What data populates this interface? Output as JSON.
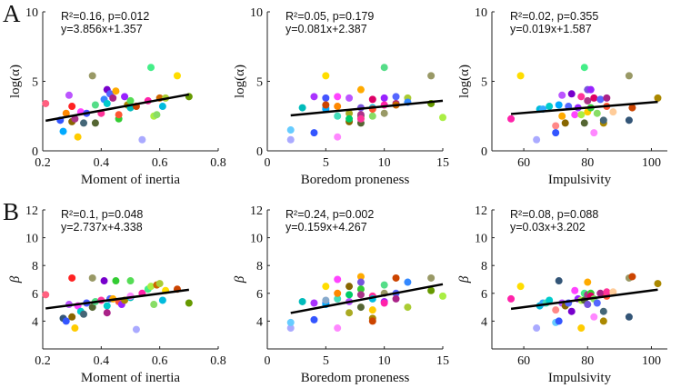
{
  "panel_labels": [
    "A",
    "B"
  ],
  "chart_data": [
    {
      "type": "scatter",
      "row": 0,
      "col": 0,
      "xlabel": "Moment of inertia",
      "ylabel": "log(α)",
      "xlim": [
        0.2,
        0.8
      ],
      "ylim": [
        0,
        10
      ],
      "xticks": [
        0.2,
        0.4,
        0.6,
        0.8
      ],
      "xtick_labels": [
        "0.2",
        "0.4",
        "0.6",
        "0.8"
      ],
      "yticks": [
        0,
        5,
        10
      ],
      "ytick_labels": [
        "0",
        "5",
        "10"
      ],
      "annotation_lines": [
        "R²=0.16, p=0.012",
        "y=3.856x+1.357"
      ],
      "fit": {
        "slope": 3.856,
        "intercept": 1.357
      },
      "x": [
        0.21,
        0.26,
        0.27,
        0.28,
        0.29,
        0.3,
        0.3,
        0.31,
        0.32,
        0.33,
        0.34,
        0.35,
        0.37,
        0.38,
        0.38,
        0.4,
        0.41,
        0.42,
        0.42,
        0.43,
        0.44,
        0.45,
        0.46,
        0.46,
        0.48,
        0.49,
        0.5,
        0.5,
        0.52,
        0.54,
        0.56,
        0.57,
        0.58,
        0.59,
        0.6,
        0.61,
        0.62,
        0.66,
        0.7
      ],
      "y": [
        3.4,
        2.2,
        1.4,
        2.7,
        4.0,
        2.1,
        3.2,
        2.3,
        1.0,
        2.8,
        2.0,
        2.7,
        5.4,
        2.0,
        3.3,
        2.7,
        3.7,
        4.4,
        3.4,
        4.1,
        3.8,
        4.3,
        2.3,
        2.6,
        3.9,
        3.3,
        3.6,
        3.1,
        3.2,
        0.8,
        3.6,
        6.0,
        2.5,
        2.6,
        3.8,
        3.2,
        3.8,
        5.4,
        3.9
      ],
      "colors": [
        "#ff6080",
        "#3355ff",
        "#00aaff",
        "#ff8800",
        "#bb55ff",
        "#886600",
        "#ff2222",
        "#aa3388",
        "#ffcc00",
        "#ff44ff",
        "#446677",
        "#4455ff",
        "#999966",
        "#556633",
        "#55dd88",
        "#ff3399",
        "#3388ff",
        "#7700cc",
        "#00cccc",
        "#5566ff",
        "#aa2288",
        "#ffaa00",
        "#33cc33",
        "#ff5533",
        "#9922ff",
        "#aa8800",
        "#55dd55",
        "#00bbbb",
        "#cc4400",
        "#aaaaff",
        "#ff22aa",
        "#44ee88",
        "#aaee44",
        "#88dd66",
        "#cc6600",
        "#00bbdd",
        "#aacc33",
        "#ffdd00",
        "#669900"
      ]
    },
    {
      "type": "scatter",
      "row": 0,
      "col": 1,
      "xlabel": "Boredom proneness",
      "ylabel": "log(α)",
      "xlim": [
        0,
        15
      ],
      "ylim": [
        0,
        10
      ],
      "xticks": [
        0,
        5,
        10,
        15
      ],
      "xtick_labels": [
        "0",
        "5",
        "10",
        "15"
      ],
      "yticks": [
        0,
        5,
        10
      ],
      "ytick_labels": [
        "0",
        "5",
        "10"
      ],
      "annotation_lines": [
        "R²=0.05, p=0.179",
        "y=0.081x+2.387"
      ],
      "fit": {
        "slope": 0.081,
        "intercept": 2.387
      },
      "x": [
        2,
        2,
        3,
        4,
        4,
        5,
        5,
        5,
        5,
        5,
        6,
        6,
        6,
        6,
        7,
        7,
        7,
        7,
        8,
        8,
        8,
        8,
        8,
        8,
        9,
        9,
        9,
        9,
        10,
        10,
        10,
        10,
        11,
        11,
        11,
        12,
        12,
        14,
        14,
        15
      ],
      "y": [
        0.8,
        1.5,
        3.1,
        1.3,
        3.9,
        5.4,
        3.8,
        3.1,
        3.0,
        3.3,
        1.0,
        2.5,
        3.9,
        3.2,
        3.8,
        2.7,
        2.1,
        2.3,
        4.4,
        3.1,
        2.5,
        2.0,
        2.6,
        2.3,
        3.7,
        3.1,
        2.5,
        3.0,
        6.0,
        3.8,
        2.7,
        3.3,
        3.9,
        3.4,
        3.3,
        3.8,
        3.5,
        5.4,
        3.4,
        2.4
      ],
      "colors": [
        "#aaaaff",
        "#66ccff",
        "#00bbbb",
        "#3355ff",
        "#aa33ff",
        "#ffdd00",
        "#4455ff",
        "#88aacc",
        "#00aaff",
        "#cc4400",
        "#ff88ff",
        "#44ddbb",
        "#ff44ff",
        "#ff8800",
        "#bb55ff",
        "#aaaa22",
        "#886600",
        "#00cc66",
        "#ffaa00",
        "#7755dd",
        "#33cc33",
        "#556633",
        "#aa3388",
        "#ff3399",
        "#dd0066",
        "#00bbdd",
        "#88dd66",
        "#ff5533",
        "#55dd88",
        "#9922ff",
        "#999966",
        "#ff22aa",
        "#5566ff",
        "#aa2288",
        "#cc6600",
        "#aacc33",
        "#3388ff",
        "#999966",
        "#669900",
        "#aaee44"
      ]
    },
    {
      "type": "scatter",
      "row": 0,
      "col": 2,
      "xlabel": "Impulsivity",
      "ylabel": "log(α)",
      "xlim": [
        50,
        105
      ],
      "ylim": [
        0,
        10
      ],
      "xticks": [
        60,
        80,
        100
      ],
      "xtick_labels": [
        "60",
        "80",
        "100"
      ],
      "yticks": [
        0,
        5,
        10
      ],
      "ytick_labels": [
        "0",
        "5",
        "10"
      ],
      "annotation_lines": [
        "R²=0.02, p=0.355",
        "y=0.019x+1.587"
      ],
      "fit": {
        "slope": 0.019,
        "intercept": 1.587
      },
      "x": [
        56,
        59,
        64,
        65,
        66,
        68,
        70,
        70,
        71,
        72,
        72,
        73,
        74,
        75,
        76,
        77,
        78,
        78,
        79,
        79,
        80,
        80,
        80,
        81,
        81,
        82,
        82,
        83,
        84,
        85,
        85,
        86,
        86,
        88,
        93,
        93,
        94,
        102
      ],
      "y": [
        2.3,
        5.4,
        0.8,
        3.0,
        3.0,
        3.2,
        1.8,
        1.3,
        3.3,
        4.0,
        2.5,
        2.0,
        3.2,
        4.1,
        2.6,
        3.1,
        2.6,
        3.9,
        6.0,
        2.0,
        4.4,
        3.6,
        2.8,
        3.1,
        4.4,
        1.3,
        3.8,
        2.7,
        3.7,
        2.0,
        2.2,
        3.8,
        3.2,
        2.8,
        5.4,
        2.2,
        3.1,
        3.8
      ],
      "colors": [
        "#ff22aa",
        "#ffdd00",
        "#aaaaff",
        "#00bbdd",
        "#33aaff",
        "#00cccc",
        "#ff8888",
        "#3355ff",
        "#00aaff",
        "#bb55ff",
        "#ffaa00",
        "#886600",
        "#5566ff",
        "#7700cc",
        "#ff44ff",
        "#9922ff",
        "#aaee44",
        "#ff3399",
        "#44ee88",
        "#556633",
        "#7755dd",
        "#aa3388",
        "#ffcc00",
        "#33cc33",
        "#9922ff",
        "#ff88ff",
        "#dd0066",
        "#88dd66",
        "#5566ff",
        "#aa8800",
        "#446677",
        "#aa2288",
        "#ff5533",
        "#ffcc99",
        "#999966",
        "#335577",
        "#cc4400",
        "#aa8800"
      ]
    },
    {
      "type": "scatter",
      "row": 1,
      "col": 0,
      "xlabel": "Moment of inertia",
      "ylabel": "β",
      "xlim": [
        0.2,
        0.8
      ],
      "ylim": [
        2,
        12
      ],
      "xticks": [
        0.2,
        0.4,
        0.6,
        0.8
      ],
      "xtick_labels": [
        "0.2",
        "0.4",
        "0.6",
        "0.8"
      ],
      "yticks": [
        4,
        6,
        8,
        10,
        12
      ],
      "ytick_labels": [
        "4",
        "6",
        "8",
        "10",
        "12"
      ],
      "annotation_lines": [
        "R²=0.1, p=0.048",
        "y=2.737x+4.338"
      ],
      "fit": {
        "slope": 2.737,
        "intercept": 4.338
      },
      "x": [
        0.21,
        0.27,
        0.28,
        0.29,
        0.3,
        0.3,
        0.31,
        0.32,
        0.33,
        0.34,
        0.35,
        0.37,
        0.37,
        0.38,
        0.4,
        0.41,
        0.42,
        0.42,
        0.43,
        0.44,
        0.45,
        0.46,
        0.47,
        0.48,
        0.5,
        0.5,
        0.5,
        0.52,
        0.54,
        0.56,
        0.57,
        0.58,
        0.59,
        0.6,
        0.61,
        0.62,
        0.66,
        0.7
      ],
      "y": [
        5.9,
        4.2,
        4.0,
        5.2,
        7.1,
        4.3,
        3.5,
        5.1,
        4.7,
        4.5,
        5.3,
        7.1,
        5.0,
        5.4,
        5.5,
        6.9,
        5.1,
        4.6,
        5.6,
        5.6,
        6.9,
        5.4,
        5.2,
        5.5,
        6.9,
        5.7,
        5.8,
        3.4,
        6.0,
        6.3,
        6.5,
        5.2,
        6.6,
        6.7,
        5.5,
        6.2,
        6.3,
        5.3
      ],
      "colors": [
        "#ff6080",
        "#335577",
        "#3355ff",
        "#bb55ff",
        "#ff2222",
        "#886600",
        "#ffcc00",
        "#ff44ff",
        "#00cccc",
        "#446677",
        "#4455ff",
        "#999966",
        "#556633",
        "#55dd88",
        "#ff3399",
        "#7700cc",
        "#00cccc",
        "#aa2288",
        "#5566ff",
        "#ffaa00",
        "#33cc33",
        "#ff5533",
        "#9922ff",
        "#aa8800",
        "#55dd55",
        "#00bbbb",
        "#ff88ff",
        "#aaaaff",
        "#ff22aa",
        "#44ee88",
        "#aaee44",
        "#88dd66",
        "#cc6600",
        "#aacc33",
        "#00bbdd",
        "#ffdd00",
        "#cc4400",
        "#669900"
      ]
    },
    {
      "type": "scatter",
      "row": 1,
      "col": 1,
      "xlabel": "Boredom proneness",
      "ylabel": "β",
      "xlim": [
        0,
        15
      ],
      "ylim": [
        2,
        12
      ],
      "xticks": [
        0,
        5,
        10,
        15
      ],
      "xtick_labels": [
        "0",
        "5",
        "10",
        "15"
      ],
      "yticks": [
        4,
        6,
        8,
        10,
        12
      ],
      "ytick_labels": [
        "4",
        "6",
        "8",
        "10",
        "12"
      ],
      "annotation_lines": [
        "R²=0.24, p=0.002",
        "y=0.159x+4.267"
      ],
      "fit": {
        "slope": 0.159,
        "intercept": 4.267
      },
      "x": [
        2,
        2,
        3,
        4,
        4,
        5,
        5,
        5,
        5,
        6,
        6,
        6,
        6,
        7,
        7,
        7,
        7,
        8,
        8,
        8,
        8,
        8,
        9,
        9,
        9,
        9,
        9,
        10,
        10,
        10,
        10,
        11,
        11,
        11,
        12,
        12,
        14,
        14,
        15
      ],
      "y": [
        3.5,
        3.9,
        5.4,
        4.1,
        5.3,
        6.5,
        5.3,
        5.2,
        5.5,
        3.5,
        5.6,
        7.0,
        6.0,
        5.4,
        4.6,
        6.5,
        5.9,
        7.2,
        6.8,
        6.3,
        5.9,
        5.0,
        4.8,
        4.2,
        4.0,
        5.8,
        5.6,
        6.6,
        5.4,
        6.0,
        5.3,
        7.1,
        6.0,
        5.6,
        5.0,
        6.8,
        7.1,
        6.2,
        5.8
      ],
      "colors": [
        "#aaaaff",
        "#66ccff",
        "#00bbbb",
        "#3355ff",
        "#aa33ff",
        "#ffdd00",
        "#4455ff",
        "#00aaff",
        "#88aacc",
        "#ff88ff",
        "#44ddbb",
        "#ff44ff",
        "#ff8800",
        "#bb55ff",
        "#aaaa22",
        "#886600",
        "#00cc66",
        "#ffaa00",
        "#7755dd",
        "#33cc33",
        "#aa3388",
        "#556633",
        "#ffcc00",
        "#aa8800",
        "#cc4400",
        "#ff3399",
        "#00bbdd",
        "#55dd88",
        "#9922ff",
        "#999966",
        "#ff22aa",
        "#cc4400",
        "#5566ff",
        "#aa2288",
        "#aacc33",
        "#3388ff",
        "#999966",
        "#669900",
        "#aaee44"
      ]
    },
    {
      "type": "scatter",
      "row": 1,
      "col": 2,
      "xlabel": "Impulsivity",
      "ylabel": "β",
      "xlim": [
        50,
        105
      ],
      "ylim": [
        2,
        12
      ],
      "xticks": [
        60,
        80,
        100
      ],
      "xtick_labels": [
        "60",
        "80",
        "100"
      ],
      "yticks": [
        4,
        6,
        8,
        10,
        12
      ],
      "ytick_labels": [
        "4",
        "6",
        "8",
        "10",
        "12"
      ],
      "annotation_lines": [
        "R²=0.08, p=0.088",
        "y=0.03x+3.202"
      ],
      "fit": {
        "slope": 0.03,
        "intercept": 3.202
      },
      "x": [
        56,
        59,
        64,
        65,
        66,
        67,
        68,
        70,
        70,
        71,
        71,
        72,
        73,
        74,
        75,
        76,
        77,
        78,
        78,
        79,
        79,
        80,
        80,
        80,
        81,
        81,
        82,
        82,
        83,
        84,
        85,
        85,
        86,
        86,
        88,
        93,
        93,
        94,
        102
      ],
      "y": [
        5.6,
        6.5,
        3.5,
        5.1,
        5.3,
        5.3,
        5.5,
        3.9,
        4.8,
        4.0,
        6.9,
        5.3,
        5.1,
        5.3,
        4.7,
        6.2,
        5.6,
        3.5,
        5.5,
        6.0,
        5.5,
        5.2,
        6.8,
        5.9,
        6.0,
        5.8,
        4.3,
        5.6,
        5.3,
        6.0,
        4.0,
        4.7,
        5.8,
        6.1,
        6.1,
        7.1,
        4.3,
        7.2,
        6.7
      ],
      "colors": [
        "#ff22aa",
        "#ffdd00",
        "#aaaaff",
        "#00bbdd",
        "#33aaff",
        "#44ddbb",
        "#00cccc",
        "#66ccff",
        "#ff8888",
        "#3355ff",
        "#335577",
        "#bb55ff",
        "#886600",
        "#5566ff",
        "#7700cc",
        "#ff44ff",
        "#9922ff",
        "#ffcc00",
        "#aaee44",
        "#44ee88",
        "#556633",
        "#7755dd",
        "#ffaa00",
        "#aa3388",
        "#33cc33",
        "#dd0066",
        "#ff88ff",
        "#88dd66",
        "#5566ff",
        "#aa2288",
        "#aa8800",
        "#446677",
        "#ff5533",
        "#ff3399",
        "#ffcc99",
        "#999966",
        "#335577",
        "#cc4400",
        "#aa8800"
      ]
    }
  ]
}
